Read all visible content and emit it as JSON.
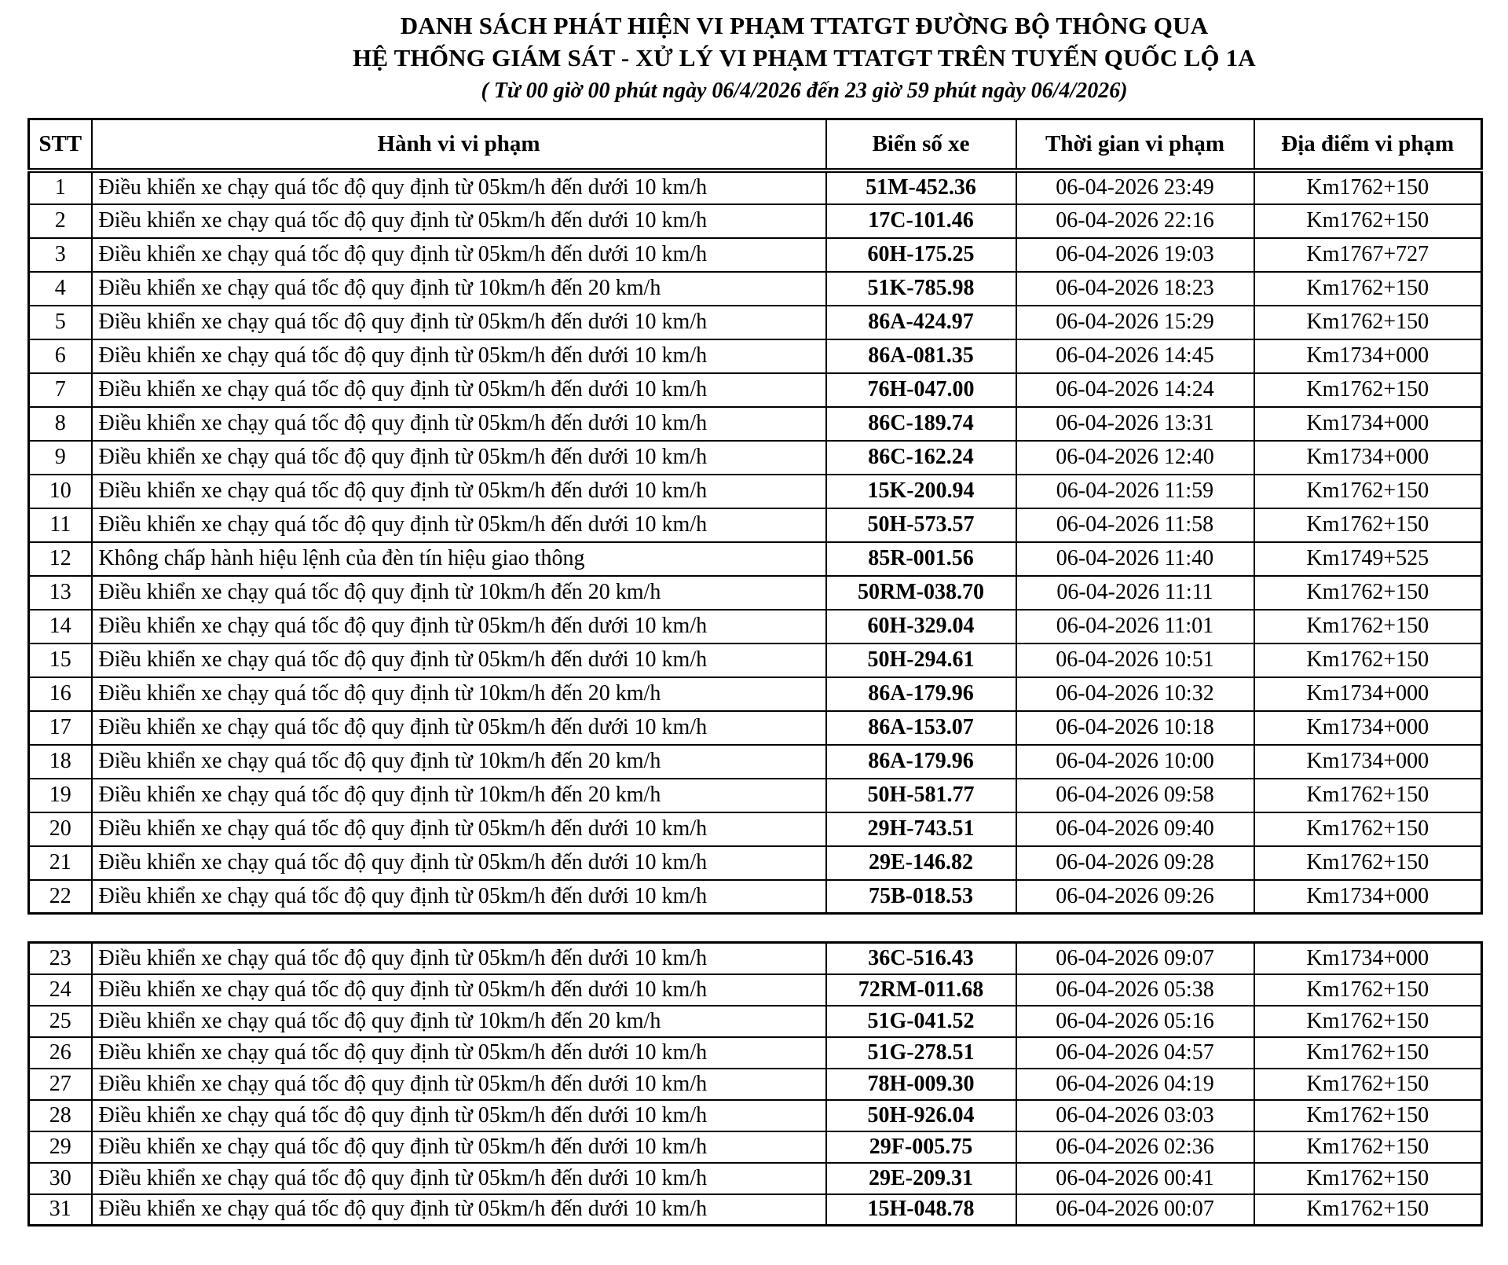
{
  "title": {
    "line1": "DANH SÁCH PHÁT HIỆN VI PHẠM TTATGT ĐƯỜNG BỘ THÔNG QUA",
    "line2": "HỆ THỐNG GIÁM SÁT - XỬ LÝ VI PHẠM TTATGT TRÊN TUYẾN QUỐC LỘ 1A",
    "line3": "( Từ 00 giờ 00 phút ngày 06/4/2026 đến 23 giờ 59 phút ngày 06/4/2026)"
  },
  "table": {
    "headers": [
      "STT",
      "Hành vi vi phạm",
      "Biển số xe",
      "Thời gian vi phạm",
      "Địa điểm vi phạm"
    ],
    "split_after_stt": 22,
    "rows": [
      {
        "stt": 1,
        "violation": "Điều khiển xe chạy quá tốc độ quy định từ 05km/h đến dưới 10 km/h",
        "plate": "51M-452.36",
        "time": "06-04-2026 23:49",
        "location": "Km1762+150"
      },
      {
        "stt": 2,
        "violation": "Điều khiển xe chạy quá tốc độ quy định từ 05km/h đến dưới 10 km/h",
        "plate": "17C-101.46",
        "time": "06-04-2026 22:16",
        "location": "Km1762+150"
      },
      {
        "stt": 3,
        "violation": "Điều khiển xe chạy quá tốc độ quy định từ 05km/h đến dưới 10 km/h",
        "plate": "60H-175.25",
        "time": "06-04-2026 19:03",
        "location": "Km1767+727"
      },
      {
        "stt": 4,
        "violation": "Điều khiển xe chạy quá tốc độ quy định từ 10km/h đến 20 km/h",
        "plate": "51K-785.98",
        "time": "06-04-2026 18:23",
        "location": "Km1762+150"
      },
      {
        "stt": 5,
        "violation": "Điều khiển xe chạy quá tốc độ quy định từ 05km/h đến dưới 10 km/h",
        "plate": "86A-424.97",
        "time": "06-04-2026 15:29",
        "location": "Km1762+150"
      },
      {
        "stt": 6,
        "violation": "Điều khiển xe chạy quá tốc độ quy định từ 05km/h đến dưới 10 km/h",
        "plate": "86A-081.35",
        "time": "06-04-2026 14:45",
        "location": "Km1734+000"
      },
      {
        "stt": 7,
        "violation": "Điều khiển xe chạy quá tốc độ quy định từ 05km/h đến dưới 10 km/h",
        "plate": "76H-047.00",
        "time": "06-04-2026 14:24",
        "location": "Km1762+150"
      },
      {
        "stt": 8,
        "violation": "Điều khiển xe chạy quá tốc độ quy định từ 05km/h đến dưới 10 km/h",
        "plate": "86C-189.74",
        "time": "06-04-2026 13:31",
        "location": "Km1734+000"
      },
      {
        "stt": 9,
        "violation": "Điều khiển xe chạy quá tốc độ quy định từ 05km/h đến dưới 10 km/h",
        "plate": "86C-162.24",
        "time": "06-04-2026 12:40",
        "location": "Km1734+000"
      },
      {
        "stt": 10,
        "violation": "Điều khiển xe chạy quá tốc độ quy định từ 05km/h đến dưới 10 km/h",
        "plate": "15K-200.94",
        "time": "06-04-2026 11:59",
        "location": "Km1762+150"
      },
      {
        "stt": 11,
        "violation": "Điều khiển xe chạy quá tốc độ quy định từ 05km/h đến dưới 10 km/h",
        "plate": "50H-573.57",
        "time": "06-04-2026 11:58",
        "location": "Km1762+150"
      },
      {
        "stt": 12,
        "violation": "Không chấp hành hiệu lệnh của đèn tín hiệu giao thông",
        "plate": "85R-001.56",
        "time": "06-04-2026 11:40",
        "location": "Km1749+525"
      },
      {
        "stt": 13,
        "violation": "Điều khiển xe chạy quá tốc độ quy định từ 10km/h đến 20 km/h",
        "plate": "50RM-038.70",
        "time": "06-04-2026 11:11",
        "location": "Km1762+150"
      },
      {
        "stt": 14,
        "violation": "Điều khiển xe chạy quá tốc độ quy định từ 05km/h đến dưới 10 km/h",
        "plate": "60H-329.04",
        "time": "06-04-2026 11:01",
        "location": "Km1762+150"
      },
      {
        "stt": 15,
        "violation": "Điều khiển xe chạy quá tốc độ quy định từ 05km/h đến dưới 10 km/h",
        "plate": "50H-294.61",
        "time": "06-04-2026 10:51",
        "location": "Km1762+150"
      },
      {
        "stt": 16,
        "violation": "Điều khiển xe chạy quá tốc độ quy định từ 10km/h đến 20 km/h",
        "plate": "86A-179.96",
        "time": "06-04-2026 10:32",
        "location": "Km1734+000"
      },
      {
        "stt": 17,
        "violation": "Điều khiển xe chạy quá tốc độ quy định từ 05km/h đến dưới 10 km/h",
        "plate": "86A-153.07",
        "time": "06-04-2026 10:18",
        "location": "Km1734+000"
      },
      {
        "stt": 18,
        "violation": "Điều khiển xe chạy quá tốc độ quy định từ 10km/h đến 20 km/h",
        "plate": "86A-179.96",
        "time": "06-04-2026 10:00",
        "location": "Km1734+000"
      },
      {
        "stt": 19,
        "violation": "Điều khiển xe chạy quá tốc độ quy định từ 10km/h đến 20 km/h",
        "plate": "50H-581.77",
        "time": "06-04-2026 09:58",
        "location": "Km1762+150"
      },
      {
        "stt": 20,
        "violation": "Điều khiển xe chạy quá tốc độ quy định từ 05km/h đến dưới 10 km/h",
        "plate": "29H-743.51",
        "time": "06-04-2026 09:40",
        "location": "Km1762+150"
      },
      {
        "stt": 21,
        "violation": "Điều khiển xe chạy quá tốc độ quy định từ 05km/h đến dưới 10 km/h",
        "plate": "29E-146.82",
        "time": "06-04-2026 09:28",
        "location": "Km1762+150"
      },
      {
        "stt": 22,
        "violation": "Điều khiển xe chạy quá tốc độ quy định từ 05km/h đến dưới 10 km/h",
        "plate": "75B-018.53",
        "time": "06-04-2026 09:26",
        "location": "Km1734+000"
      },
      {
        "stt": 23,
        "violation": "Điều khiển xe chạy quá tốc độ quy định từ 05km/h đến dưới 10 km/h",
        "plate": "36C-516.43",
        "time": "06-04-2026 09:07",
        "location": "Km1734+000"
      },
      {
        "stt": 24,
        "violation": "Điều khiển xe chạy quá tốc độ quy định từ 05km/h đến dưới 10 km/h",
        "plate": "72RM-011.68",
        "time": "06-04-2026 05:38",
        "location": "Km1762+150"
      },
      {
        "stt": 25,
        "violation": "Điều khiển xe chạy quá tốc độ quy định từ 10km/h đến 20 km/h",
        "plate": "51G-041.52",
        "time": "06-04-2026 05:16",
        "location": "Km1762+150"
      },
      {
        "stt": 26,
        "violation": "Điều khiển xe chạy quá tốc độ quy định từ 05km/h đến dưới 10 km/h",
        "plate": "51G-278.51",
        "time": "06-04-2026 04:57",
        "location": "Km1762+150"
      },
      {
        "stt": 27,
        "violation": "Điều khiển xe chạy quá tốc độ quy định từ 05km/h đến dưới 10 km/h",
        "plate": "78H-009.30",
        "time": "06-04-2026 04:19",
        "location": "Km1762+150"
      },
      {
        "stt": 28,
        "violation": "Điều khiển xe chạy quá tốc độ quy định từ 05km/h đến dưới 10 km/h",
        "plate": "50H-926.04",
        "time": "06-04-2026 03:03",
        "location": "Km1762+150"
      },
      {
        "stt": 29,
        "violation": "Điều khiển xe chạy quá tốc độ quy định từ 05km/h đến dưới 10 km/h",
        "plate": "29F-005.75",
        "time": "06-04-2026 02:36",
        "location": "Km1762+150"
      },
      {
        "stt": 30,
        "violation": "Điều khiển xe chạy quá tốc độ quy định từ 05km/h đến dưới 10 km/h",
        "plate": "29E-209.31",
        "time": "06-04-2026 00:41",
        "location": "Km1762+150"
      },
      {
        "stt": 31,
        "violation": "Điều khiển xe chạy quá tốc độ quy định từ 05km/h đến dưới 10 km/h",
        "plate": "15H-048.78",
        "time": "06-04-2026 00:07",
        "location": "Km1762+150"
      }
    ]
  }
}
